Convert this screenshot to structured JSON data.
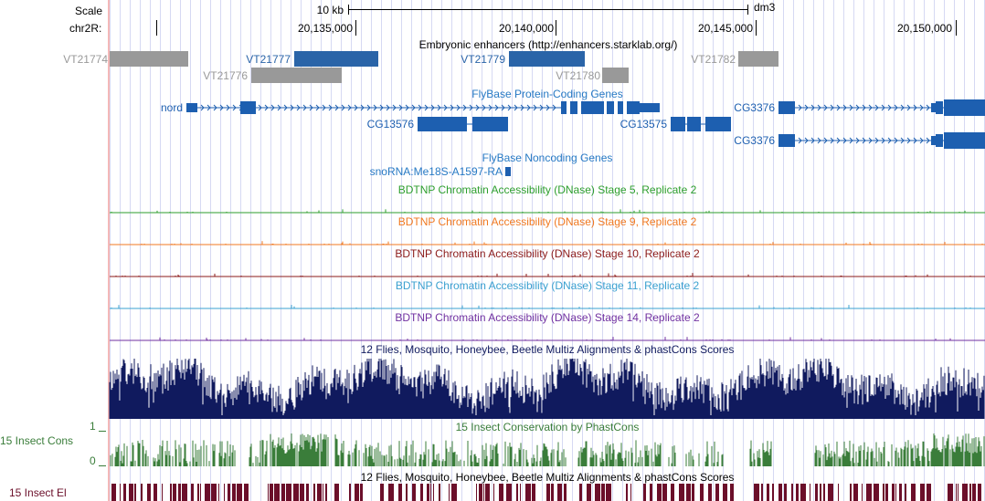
{
  "ruler": {
    "scale_label": "Scale",
    "scale_bar": "10 kb",
    "assembly": "dm3",
    "chrom_label": "chr2R:",
    "ticks": [
      "20,135,000",
      "20,140,000",
      "20,145,000",
      "20,150,000"
    ]
  },
  "enhancers": {
    "title": "Embryonic enhancers (http://enhancers.starklab.org/)",
    "items": [
      "VT21774",
      "VT21777",
      "VT21779",
      "VT21776",
      "VT21780",
      "VT21782"
    ]
  },
  "genes": {
    "title": "FlyBase Protein-Coding Genes",
    "items": [
      "nord",
      "CG13576",
      "CG13575",
      "CG3376",
      "CG3376"
    ]
  },
  "noncoding": {
    "title": "FlyBase Noncoding Genes",
    "items": [
      "snoRNA:Me18S-A1597-RA"
    ]
  },
  "dnase": [
    {
      "title": "BDTNP Chromatin Accessibility (DNase) Stage 5, Replicate 2",
      "color": "#2d9e2d"
    },
    {
      "title": "BDTNP Chromatin Accessibility (DNase) Stage 9, Replicate 2",
      "color": "#f07820"
    },
    {
      "title": "BDTNP Chromatin Accessibility (DNase) Stage 10, Replicate 2",
      "color": "#8b1a1a"
    },
    {
      "title": "BDTNP Chromatin Accessibility (DNase) Stage 11, Replicate 2",
      "color": "#3aa0d0"
    },
    {
      "title": "BDTNP Chromatin Accessibility (DNase) Stage 14, Replicate 2",
      "color": "#7030a0"
    }
  ],
  "multiz": {
    "title": "12 Flies, Mosquito, Honeybee, Beetle Multiz Alignments & phastCons Scores",
    "color": "#101a5e"
  },
  "phastcons": {
    "title": "15 Insect Conservation by PhastCons",
    "side_label": "15 Insect Cons",
    "axis_max": "1",
    "axis_min": "0",
    "color": "#3a7d3a"
  },
  "elements": {
    "title": "12 Flies, Mosquito, Honeybee, Beetle Multiz Alignments & phastCons Scores",
    "side_label": "15 Insect El",
    "color": "#6b0f2a"
  },
  "colors": {
    "gene_blue": "#1d5fb0",
    "enh_blue": "#2a64a8",
    "enh_gray": "#999999",
    "title_blue": "#2679c4"
  }
}
